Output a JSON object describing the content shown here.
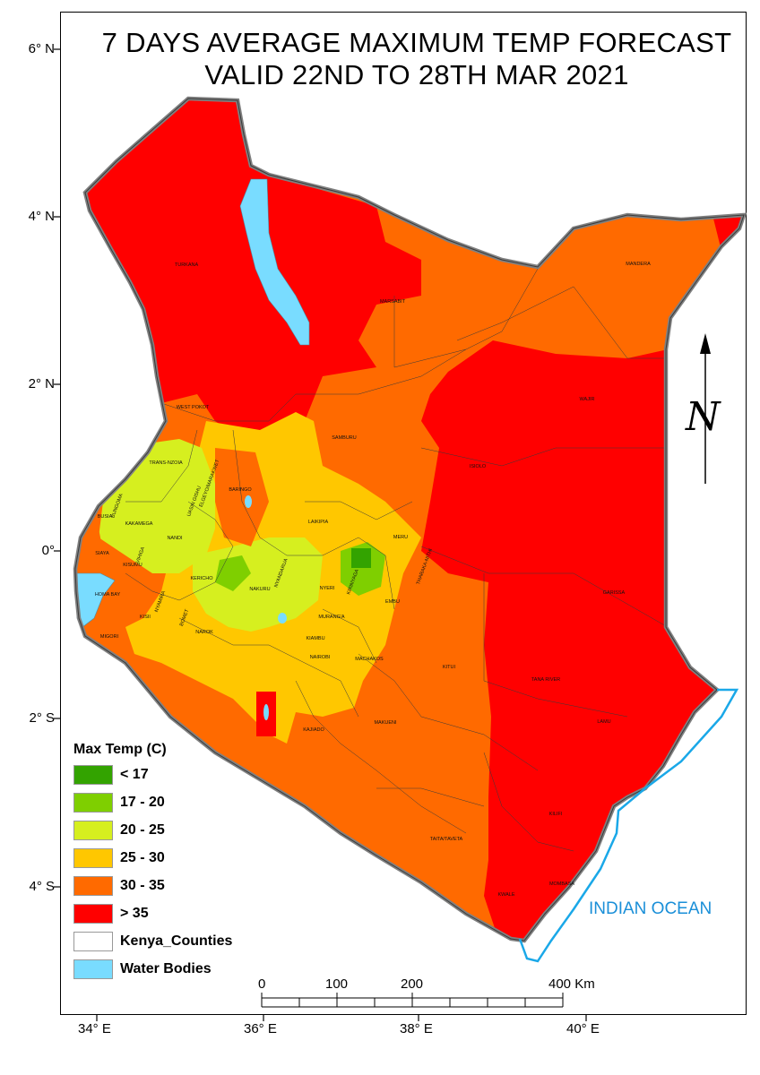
{
  "title": {
    "line1": "7 DAYS AVERAGE MAXIMUM TEMP FORECAST",
    "line2": "VALID 22ND  TO 28TH MAR 2021"
  },
  "graticule": {
    "latitudes": [
      "6° N",
      "4° N",
      "2° N",
      "0°",
      "2° S",
      "4° S"
    ],
    "longitudes": [
      "34° E",
      "36° E",
      "38° E",
      "40° E"
    ]
  },
  "legend": {
    "title": "Max Temp (C)",
    "items": [
      {
        "label": "< 17",
        "color": "#33a300"
      },
      {
        "label": "17 - 20",
        "color": "#7fcf00"
      },
      {
        "label": "20 - 25",
        "color": "#d6ef1f"
      },
      {
        "label": "25 - 30",
        "color": "#ffc700"
      },
      {
        "label": "30 - 35",
        "color": "#ff6a00"
      },
      {
        "label": "> 35",
        "color": "#ff0000"
      },
      {
        "label": "Kenya_Counties",
        "color": "#ffffff"
      },
      {
        "label": "Water Bodies",
        "color": "#79dcff"
      }
    ]
  },
  "scale_bar": {
    "labels": [
      "0",
      "100",
      "200",
      "400 Km"
    ]
  },
  "ocean_label": "INDIAN OCEAN",
  "north_arrow": "N",
  "counties": [
    "TURKANA",
    "MARSABIT",
    "MANDERA",
    "WAJIR",
    "WEST POKOT",
    "SAMBURU",
    "TRANS-NZOIA",
    "ELGEYO/MARAKWET",
    "UASIN GISHU",
    "BARINGO",
    "ISIOLO",
    "BUNGOMA",
    "BUSIA",
    "KAKAMEGA",
    "NANDI",
    "LAIKIPIA",
    "MERU",
    "VIHIGA",
    "SIAYA",
    "KISUMU",
    "KERICHO",
    "NAKURU",
    "NYANDARUA",
    "NYERI",
    "KIRINYAGA",
    "THARAKA-NITHI",
    "EMBU",
    "GARISSA",
    "HOMA BAY",
    "NYAMIRA",
    "KISII",
    "BOMET",
    "MURANG'A",
    "MIGORI",
    "NAROK",
    "KIAMBU",
    "NAIROBI",
    "MACHAKOS",
    "KITUI",
    "TANA RIVER",
    "LAMU",
    "KAJIADO",
    "MAKUENI",
    "KILIFI",
    "TAITA/TAVETA",
    "MOMBASA",
    "KWALE"
  ],
  "colors": {
    "hot": "#ff0000",
    "warm": "#ff6a00",
    "mild": "#ffc700",
    "cool": "#d6ef1f",
    "cooler": "#7fcf00",
    "coolest": "#33a300",
    "water": "#79dcff",
    "ocean_line": "#1aa8e8"
  }
}
